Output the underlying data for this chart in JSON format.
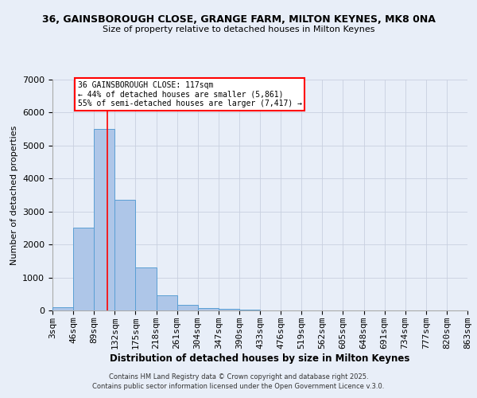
{
  "title_line1": "36, GAINSBOROUGH CLOSE, GRANGE FARM, MILTON KEYNES, MK8 0NA",
  "title_line2": "Size of property relative to detached houses in Milton Keynes",
  "xlabel": "Distribution of detached houses by size in Milton Keynes",
  "ylabel": "Number of detached properties",
  "bin_edges": [
    3,
    46,
    89,
    132,
    175,
    218,
    261,
    304,
    347,
    390,
    433,
    476,
    519,
    562,
    605,
    648,
    691,
    734,
    777,
    820,
    863
  ],
  "bar_heights": [
    100,
    2500,
    5500,
    3350,
    1300,
    450,
    175,
    75,
    50,
    30,
    5,
    2,
    1,
    1,
    0,
    0,
    0,
    0,
    0,
    0
  ],
  "bar_color": "#aec6e8",
  "bar_edge_color": "#5a9fd4",
  "background_color": "#e8eef8",
  "grid_color": "#c8d0e0",
  "property_size": 117,
  "vline_color": "red",
  "ylim": [
    0,
    7000
  ],
  "annotation_title": "36 GAINSBOROUGH CLOSE: 117sqm",
  "annotation_line2": "← 44% of detached houses are smaller (5,861)",
  "annotation_line3": "55% of semi-detached houses are larger (7,417) →",
  "annotation_box_color": "white",
  "annotation_border_color": "red",
  "footer_line1": "Contains HM Land Registry data © Crown copyright and database right 2025.",
  "footer_line2": "Contains public sector information licensed under the Open Government Licence v.3.0.",
  "tick_labels": [
    "3sqm",
    "46sqm",
    "89sqm",
    "132sqm",
    "175sqm",
    "218sqm",
    "261sqm",
    "304sqm",
    "347sqm",
    "390sqm",
    "433sqm",
    "476sqm",
    "519sqm",
    "562sqm",
    "605sqm",
    "648sqm",
    "691sqm",
    "734sqm",
    "777sqm",
    "820sqm",
    "863sqm"
  ]
}
